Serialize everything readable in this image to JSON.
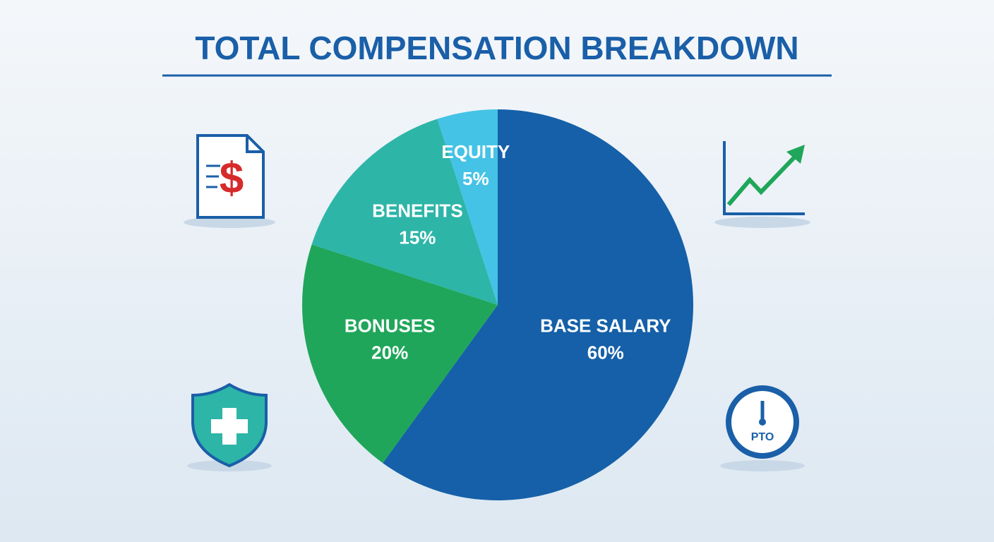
{
  "chart_data": {
    "type": "pie",
    "title": "TOTAL COMPENSATION BREAKDOWN",
    "categories": [
      "BASE SALARY",
      "BONUSES",
      "BENEFITS",
      "EQUITY"
    ],
    "values": [
      60,
      20,
      15,
      5
    ],
    "value_labels": [
      "60%",
      "20%",
      "15%",
      "5%"
    ],
    "colors": [
      "#1560a8",
      "#1fa65a",
      "#2db5a8",
      "#45c3e6"
    ]
  },
  "pto_icon_label": "PTO"
}
